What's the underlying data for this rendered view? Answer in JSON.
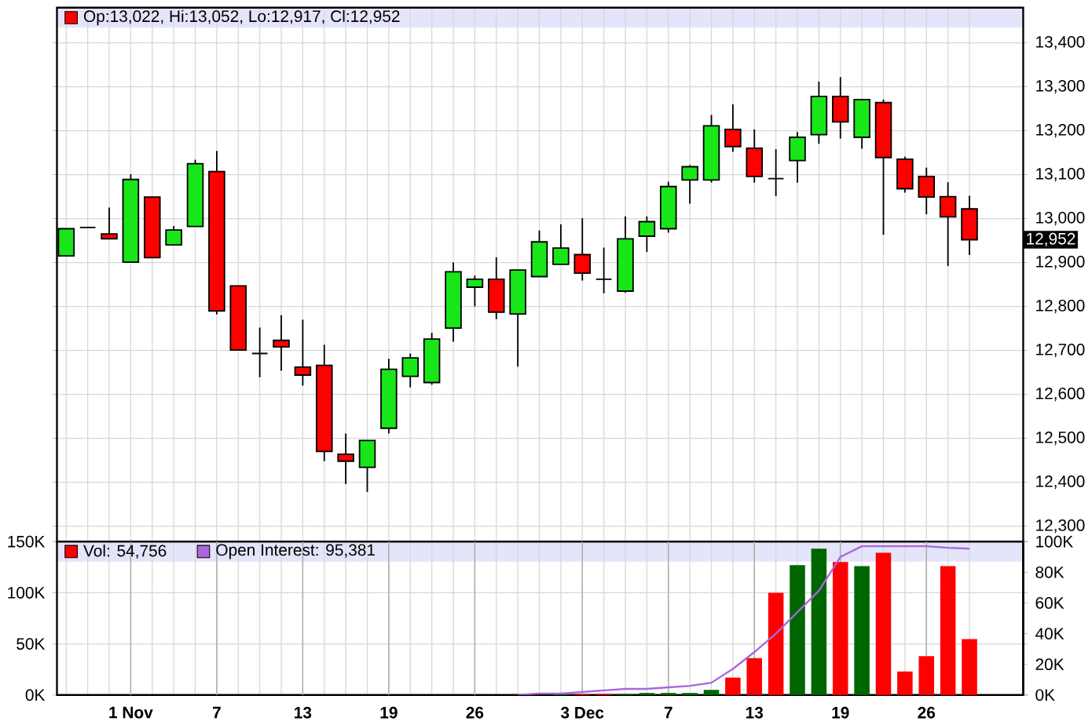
{
  "chart_data": [
    {
      "type": "candlestick",
      "categories": [
        null,
        null,
        null,
        null,
        null,
        null,
        null,
        null,
        null,
        null,
        null,
        null,
        null,
        null,
        null,
        null,
        null,
        null,
        null,
        null,
        null,
        null,
        null,
        null,
        null,
        null,
        null,
        null,
        null,
        null,
        null,
        null,
        null,
        null,
        null,
        null,
        null,
        null,
        null,
        null,
        null,
        null,
        null
      ],
      "series": [
        {
          "name": "Op:13,022, Hi:13,052, Lo:12,917, Cl:12,952",
          "color": "#ff0000",
          "colors": [
            "#19e619",
            "#000000",
            "#ff0000",
            "#19e619",
            "#ff0000",
            "#19e619",
            "#19e619",
            "#ff0000",
            "#ff0000",
            "#000000",
            "#ff0000",
            "#ff0000",
            "#ff0000",
            "#ff0000",
            "#19e619",
            "#19e619",
            "#19e619",
            "#19e619",
            "#19e619",
            "#19e619",
            "#ff0000",
            "#19e619",
            "#19e619",
            "#19e619",
            "#ff0000",
            "#000000",
            "#19e619",
            "#19e619",
            "#19e619",
            "#19e619",
            "#19e619",
            "#ff0000",
            "#ff0000",
            "#000000",
            "#19e619",
            "#19e619",
            "#ff0000",
            "#19e619",
            "#ff0000",
            "#ff0000",
            "#ff0000",
            "#ff0000",
            "#ff0000"
          ],
          "ohlc": [
            [
              12915,
              12977,
              12915,
              12977
            ],
            [
              12980,
              12980,
              12980,
              12980
            ],
            [
              12965,
              13025,
              12954,
              12954
            ],
            [
              12901,
              13101,
              12901,
              13089
            ],
            [
              13049,
              13049,
              12911,
              12911
            ],
            [
              12940,
              12983,
              12940,
              12974
            ],
            [
              12982,
              13134,
              12982,
              13125
            ],
            [
              13107,
              13154,
              12782,
              12790
            ],
            [
              12847,
              12847,
              12701,
              12701
            ],
            [
              12693,
              12752,
              12639,
              12693
            ],
            [
              12723,
              12780,
              12654,
              12708
            ],
            [
              12662,
              12770,
              12620,
              12644
            ],
            [
              12666,
              12713,
              12448,
              12470
            ],
            [
              12464,
              12511,
              12396,
              12448
            ],
            [
              12434,
              12495,
              12378,
              12495
            ],
            [
              12523,
              12681,
              12511,
              12657
            ],
            [
              12641,
              12693,
              12616,
              12683
            ],
            [
              12627,
              12740,
              12622,
              12726
            ],
            [
              12751,
              12900,
              12720,
              12879
            ],
            [
              12844,
              12870,
              12800,
              12862
            ],
            [
              12862,
              12912,
              12771,
              12787
            ],
            [
              12783,
              12883,
              12663,
              12883
            ],
            [
              12868,
              12973,
              12868,
              12947
            ],
            [
              12896,
              12987,
              12896,
              12933
            ],
            [
              12918,
              13001,
              12859,
              12876
            ],
            [
              12862,
              12934,
              12830,
              12862
            ],
            [
              12835,
              13005,
              12831,
              12954
            ],
            [
              12960,
              13005,
              12924,
              12993
            ],
            [
              12977,
              13084,
              12968,
              13073
            ],
            [
              13088,
              13122,
              13034,
              13118
            ],
            [
              13088,
              13236,
              13082,
              13211
            ],
            [
              13203,
              13260,
              13152,
              13164
            ],
            [
              13160,
              13203,
              13082,
              13096
            ],
            [
              13091,
              13158,
              13051,
              13091
            ],
            [
              13132,
              13197,
              13082,
              13185
            ],
            [
              13191,
              13312,
              13170,
              13278
            ],
            [
              13278,
              13322,
              13182,
              13220
            ],
            [
              13185,
              13271,
              13159,
              13271
            ],
            [
              13264,
              13271,
              12963,
              13139
            ],
            [
              13135,
              13141,
              13059,
              13068
            ],
            [
              13096,
              13116,
              13010,
              13049
            ],
            [
              13050,
              13083,
              12892,
              13004
            ],
            [
              13022,
              13052,
              12917,
              12952
            ]
          ]
        }
      ],
      "ylim": [
        12265,
        13480
      ],
      "yticks": [
        {
          "value": 12300,
          "label": "12,300"
        },
        {
          "value": 12400,
          "label": "12,400"
        },
        {
          "value": 12500,
          "label": "12,500"
        },
        {
          "value": 12600,
          "label": "12,600"
        },
        {
          "value": 12700,
          "label": "12,700"
        },
        {
          "value": 12800,
          "label": "12,800"
        },
        {
          "value": 12900,
          "label": "12,900"
        },
        {
          "value": 13000,
          "label": "13,000"
        },
        {
          "value": 13100,
          "label": "13,100"
        },
        {
          "value": 13200,
          "label": "13,200"
        },
        {
          "value": 13300,
          "label": "13,300"
        },
        {
          "value": 13400,
          "label": "13,400"
        }
      ],
      "annotations": [
        "12,952"
      ],
      "grid": true,
      "legend": "top left",
      "tick_labels": "y"
    },
    {
      "type": "bar",
      "categories": [
        null,
        null,
        null,
        "1 Nov",
        null,
        null,
        null,
        "7",
        null,
        null,
        null,
        "13",
        null,
        null,
        null,
        "19",
        null,
        null,
        null,
        "26",
        null,
        null,
        null,
        null,
        "3 Dec",
        null,
        null,
        null,
        "7",
        null,
        null,
        null,
        "13",
        null,
        null,
        null,
        "19",
        null,
        null,
        null,
        "26",
        null,
        null
      ],
      "series": [
        {
          "name": "Vol: 54,756",
          "color": "#ff0000",
          "values": [
            0,
            0,
            0,
            0,
            0,
            0,
            0,
            0,
            0,
            0,
            0,
            0,
            0,
            0,
            0,
            0,
            0,
            0,
            0,
            0,
            0,
            0,
            0,
            1000,
            1000,
            1000,
            1000,
            2000,
            2000,
            2000,
            5000,
            17000,
            36000,
            100000,
            127000,
            143000,
            130000,
            126000,
            139000,
            23000,
            38000,
            126000,
            54756
          ],
          "colors": [
            "#006600",
            "#ff0000",
            "#ff0000",
            "#006600",
            "#ff0000",
            "#006600",
            "#006600",
            "#ff0000",
            "#ff0000",
            "#ff0000",
            "#ff0000",
            "#ff0000",
            "#ff0000",
            "#ff0000",
            "#006600",
            "#006600",
            "#006600",
            "#006600",
            "#006600",
            "#006600",
            "#ff0000",
            "#006600",
            "#006600",
            "#006600",
            "#ff0000",
            "#ff0000",
            "#006600",
            "#006600",
            "#006600",
            "#006600",
            "#006600",
            "#ff0000",
            "#ff0000",
            "#ff0000",
            "#006600",
            "#006600",
            "#ff0000",
            "#006600",
            "#ff0000",
            "#ff0000",
            "#ff0000",
            "#ff0000",
            "#ff0000"
          ]
        },
        {
          "name": "Open Interest: 95,381",
          "type": "line",
          "axis": "y2",
          "color": "#aa66dd",
          "values": [
            null,
            null,
            null,
            null,
            null,
            null,
            null,
            null,
            null,
            null,
            null,
            null,
            null,
            null,
            null,
            null,
            null,
            null,
            null,
            null,
            null,
            0,
            1000,
            1000,
            2000,
            3000,
            4000,
            4000,
            5000,
            6000,
            8000,
            17000,
            28000,
            40000,
            54000,
            68000,
            90000,
            97000,
            97000,
            97000,
            97000,
            96000,
            95381
          ]
        }
      ],
      "ylim": [
        0,
        150000
      ],
      "yticks": [
        {
          "value": 0,
          "label": "0K"
        },
        {
          "value": 50000,
          "label": "50K"
        },
        {
          "value": 100000,
          "label": "100K"
        },
        {
          "value": 150000,
          "label": "150K"
        }
      ],
      "y2lim": [
        0,
        100000
      ],
      "y2ticks": [
        {
          "value": 0,
          "label": "0K"
        },
        {
          "value": 20000,
          "label": "20K"
        },
        {
          "value": 40000,
          "label": "40K"
        },
        {
          "value": 60000,
          "label": "60K"
        },
        {
          "value": 80000,
          "label": "80K"
        },
        {
          "value": 100000,
          "label": "100K"
        }
      ],
      "grid": true,
      "legend": "top left"
    }
  ]
}
